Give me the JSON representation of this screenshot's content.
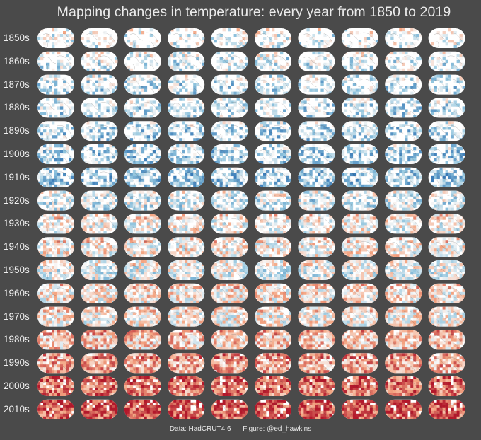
{
  "title": "Mapping changes in temperature: every year from 1850 to 2019",
  "decades": [
    "1850s",
    "1860s",
    "1870s",
    "1880s",
    "1890s",
    "1900s",
    "1910s",
    "1920s",
    "1930s",
    "1940s",
    "1950s",
    "1960s",
    "1970s",
    "1980s",
    "1990s",
    "2000s",
    "2010s"
  ],
  "years_per_row": 10,
  "first_year": 1850,
  "last_year": 2019,
  "background_color": "#4a4a4a",
  "map_colors": {
    "cold": "#2166ac",
    "cool": "#92c5de",
    "neutral": "#f7f7f7",
    "warm": "#f4a582",
    "hot": "#b2182b"
  },
  "decade_anomaly_trend": [
    -0.15,
    -0.2,
    -0.3,
    -0.3,
    -0.35,
    -0.4,
    -0.45,
    -0.2,
    0.0,
    0.05,
    -0.1,
    0.1,
    0.05,
    0.25,
    0.4,
    0.6,
    0.75
  ],
  "footer": {
    "data_credit": "Data: HadCRUT4.6",
    "figure_credit": "Figure: @ed_hawkins"
  }
}
